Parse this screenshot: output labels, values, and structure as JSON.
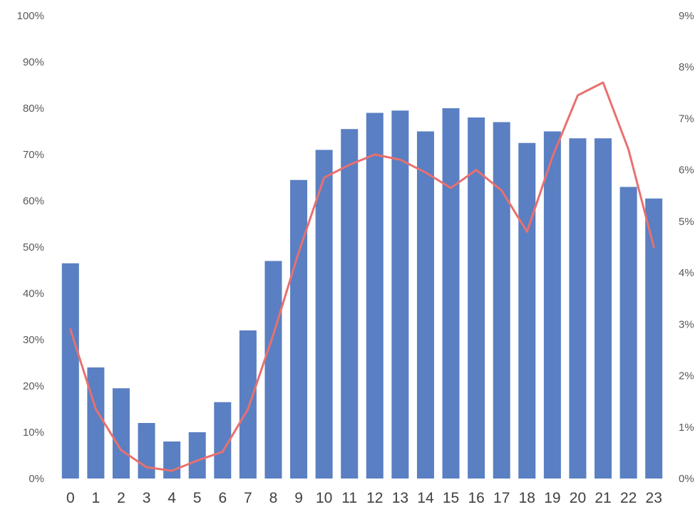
{
  "chart_data": {
    "type": "bar",
    "categories": [
      "0",
      "1",
      "2",
      "3",
      "4",
      "5",
      "6",
      "7",
      "8",
      "9",
      "10",
      "11",
      "12",
      "13",
      "14",
      "15",
      "16",
      "17",
      "18",
      "19",
      "20",
      "21",
      "22",
      "23"
    ],
    "series": [
      {
        "type": "bar",
        "axis": "left",
        "color": "#5A7FC2",
        "values": [
          46.5,
          24,
          19.5,
          12,
          8,
          10,
          16.5,
          32,
          47,
          64.5,
          71,
          75.5,
          79,
          79.5,
          75,
          80,
          78,
          77,
          72.5,
          75,
          73.5,
          73.5,
          63,
          60.5
        ]
      },
      {
        "type": "line",
        "axis": "right",
        "color": "#E8706F",
        "values": [
          2.9,
          1.35,
          0.55,
          0.22,
          0.15,
          0.35,
          0.52,
          1.35,
          2.8,
          4.4,
          5.85,
          6.1,
          6.3,
          6.2,
          5.95,
          5.65,
          6.0,
          5.6,
          4.8,
          6.25,
          7.45,
          7.7,
          6.4,
          4.5
        ]
      }
    ],
    "y_left": {
      "ylim": [
        0,
        100
      ],
      "ticks": [
        "0%",
        "10%",
        "20%",
        "30%",
        "40%",
        "50%",
        "60%",
        "70%",
        "80%",
        "90%",
        "100%"
      ]
    },
    "y_right": {
      "ylim": [
        0,
        9
      ],
      "ticks": [
        "0%",
        "1%",
        "2%",
        "3%",
        "4%",
        "5%",
        "6%",
        "7%",
        "8%",
        "9%"
      ]
    },
    "grid": false,
    "legend": "none"
  }
}
